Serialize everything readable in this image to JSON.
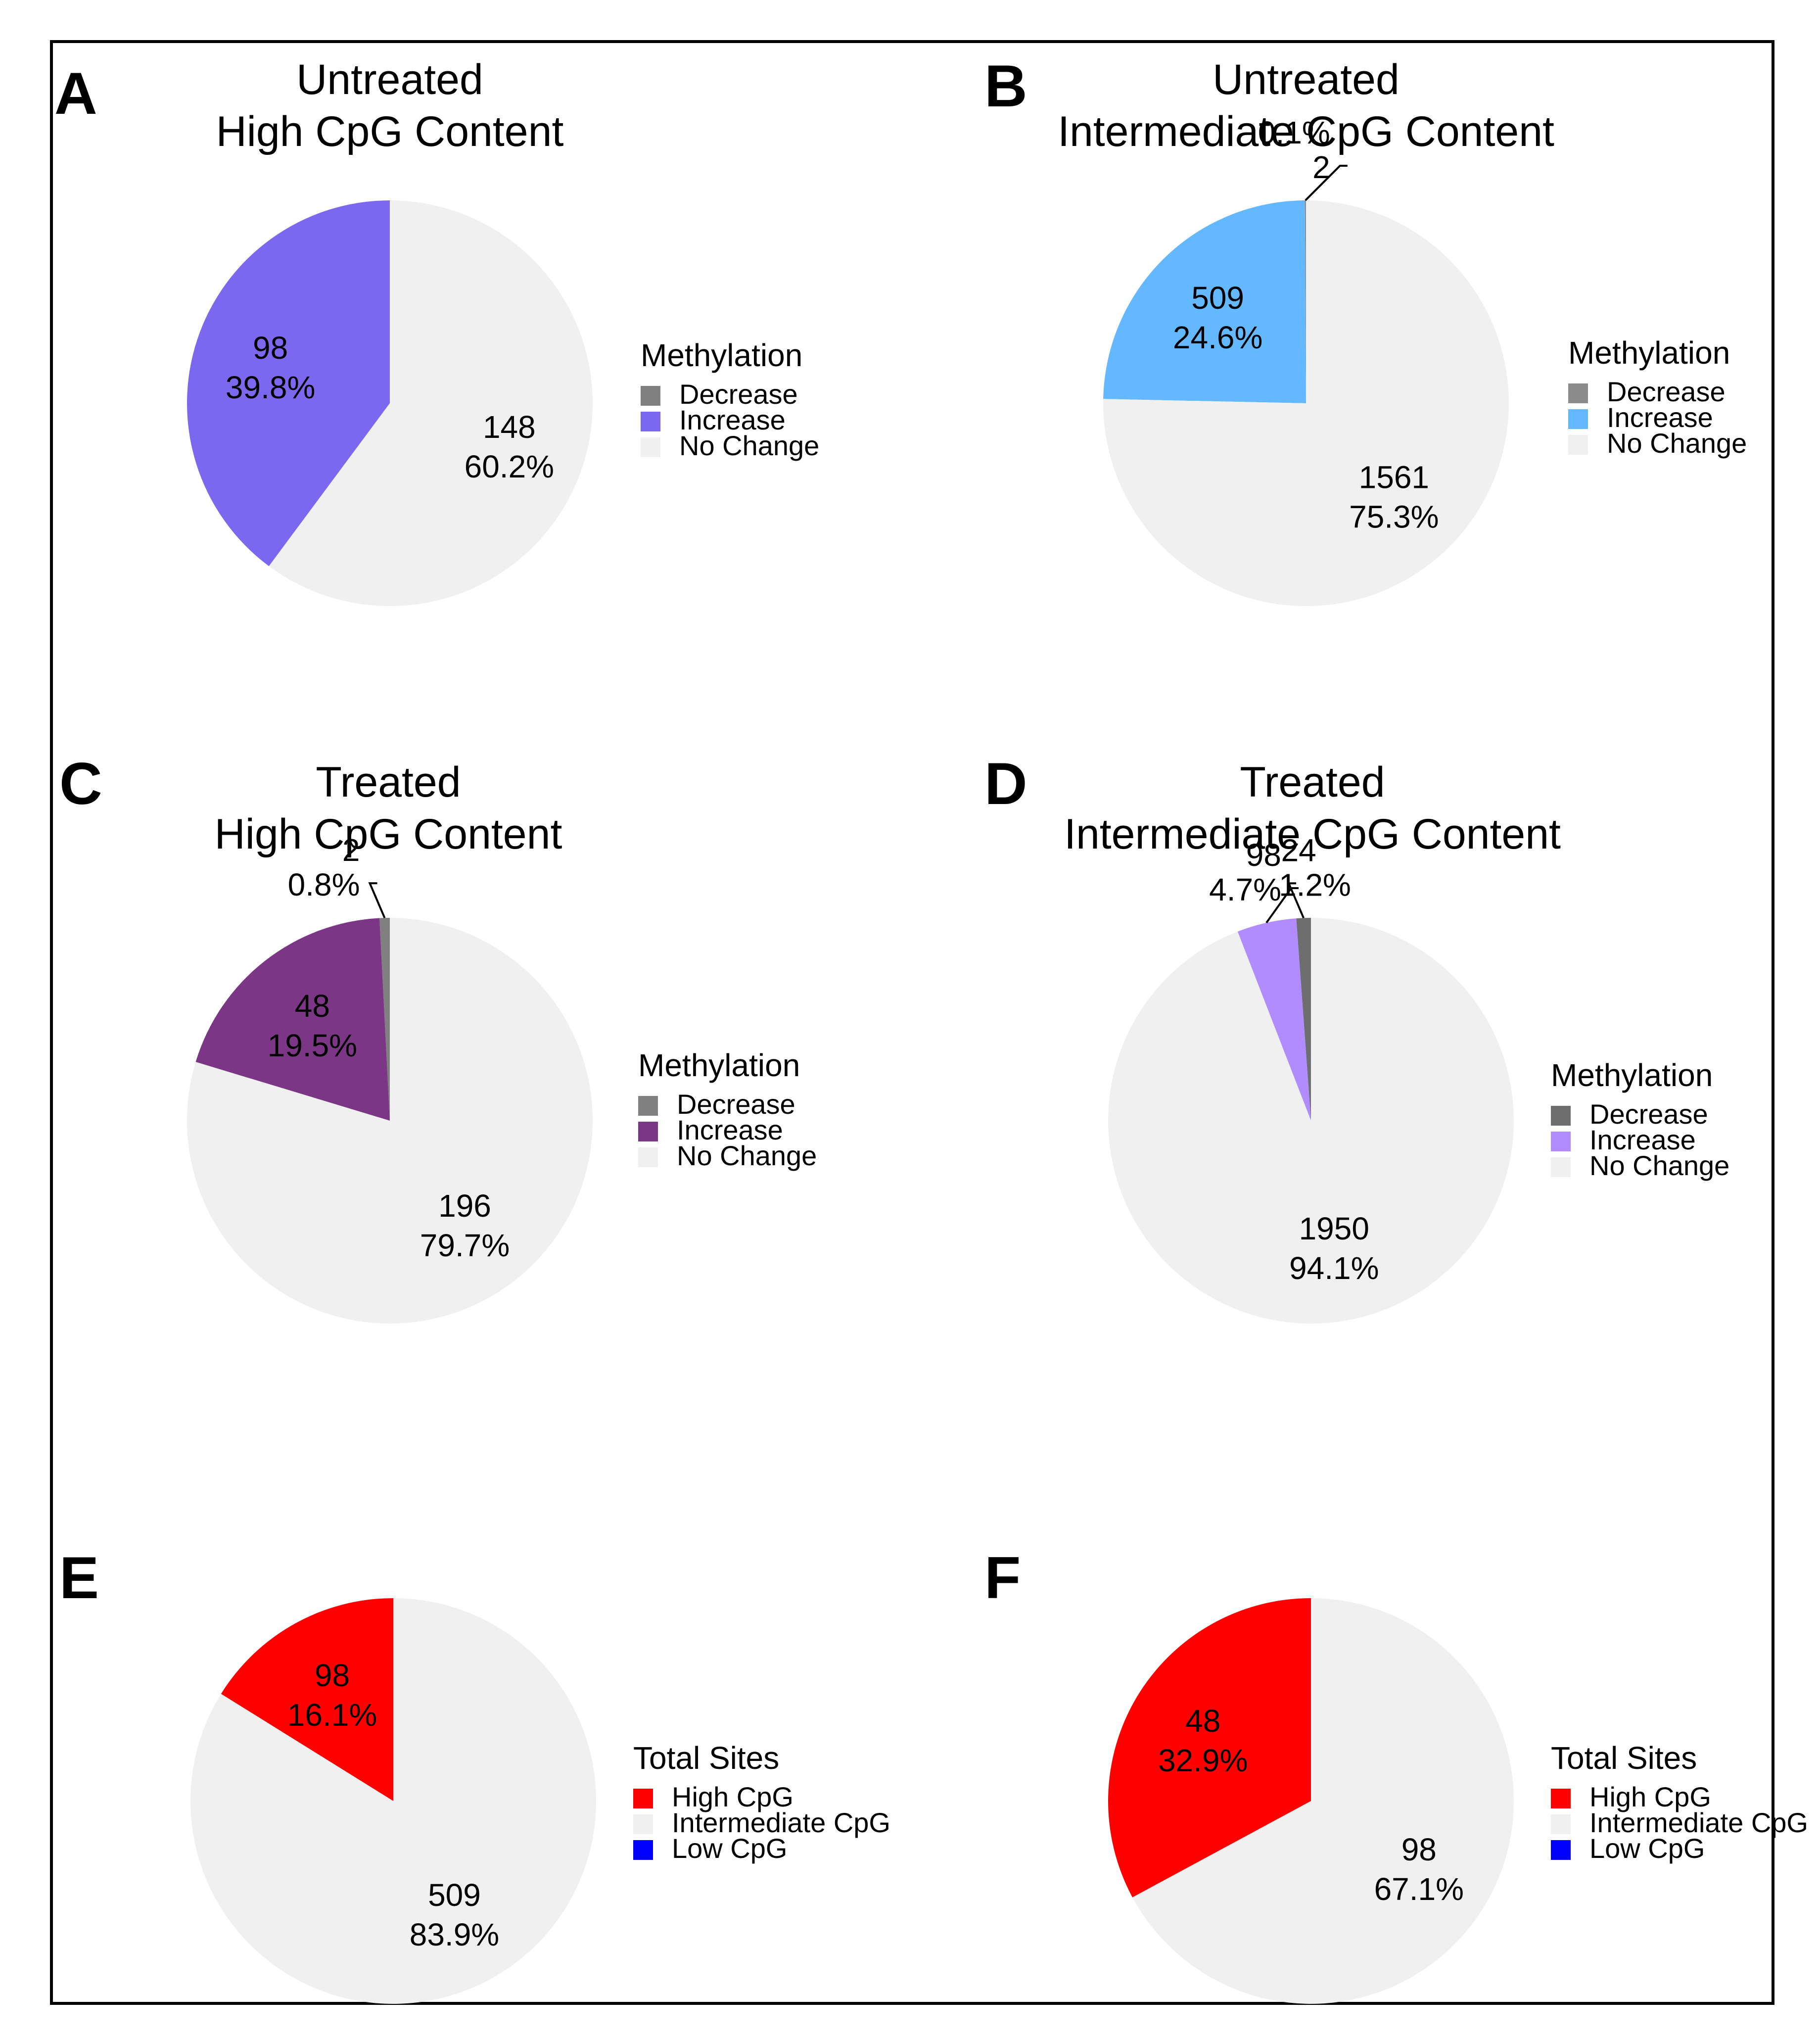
{
  "figure": {
    "background": "#ffffff",
    "frame_color": "#000000"
  },
  "chart_data": [
    {
      "panel": "A",
      "type": "pie",
      "title": [
        "Untreated",
        "High CpG Content"
      ],
      "legend_title": "Methylation",
      "slices": [
        {
          "name": "Decrease",
          "value": 0,
          "percent": "",
          "color": "#808080",
          "label": [
            "",
            ""
          ]
        },
        {
          "name": "Increase",
          "value": 98,
          "percent": "39.8%",
          "color": "#7B68EE",
          "label": [
            "98",
            "39.8%"
          ]
        },
        {
          "name": "No Change",
          "value": 148,
          "percent": "60.2%",
          "color": "#F0F0F0",
          "label": [
            "148",
            "60.2%"
          ]
        }
      ]
    },
    {
      "panel": "B",
      "type": "pie",
      "title": [
        "Untreated",
        "Intermediate CpG Content"
      ],
      "legend_title": "Methylation",
      "slices": [
        {
          "name": "Decrease",
          "value": 2,
          "percent": "0.1%",
          "color": "#8C8C8C",
          "label": [
            "0.1%",
            "2"
          ]
        },
        {
          "name": "Increase",
          "value": 509,
          "percent": "24.6%",
          "color": "#63B8FF",
          "label": [
            "509",
            "24.6%"
          ]
        },
        {
          "name": "No Change",
          "value": 1561,
          "percent": "75.3%",
          "color": "#F0F0F0",
          "label": [
            "1561",
            "75.3%"
          ]
        }
      ]
    },
    {
      "panel": "C",
      "type": "pie",
      "title": [
        "Treated",
        "High CpG Content"
      ],
      "legend_title": "Methylation",
      "slices": [
        {
          "name": "Decrease",
          "value": 2,
          "percent": "0.8%",
          "color": "#808080",
          "label": [
            "2",
            "0.8%"
          ]
        },
        {
          "name": "Increase",
          "value": 48,
          "percent": "19.5%",
          "color": "#7B3785",
          "label": [
            "48",
            "19.5%"
          ]
        },
        {
          "name": "No Change",
          "value": 196,
          "percent": "79.7%",
          "color": "#F0F0F0",
          "label": [
            "196",
            "79.7%"
          ]
        }
      ]
    },
    {
      "panel": "D",
      "type": "pie",
      "title": [
        "Treated",
        "Intermediate CpG Content"
      ],
      "legend_title": "Methylation",
      "slices": [
        {
          "name": "Decrease",
          "value": 24,
          "percent": "1.2%",
          "color": "#6E6E6E",
          "label": [
            "24",
            "1.2%"
          ]
        },
        {
          "name": "Increase",
          "value": 98,
          "percent": "4.7%",
          "color": "#B08CFF",
          "label": [
            "98",
            "4.7%"
          ]
        },
        {
          "name": "No Change",
          "value": 1950,
          "percent": "94.1%",
          "color": "#F0F0F0",
          "label": [
            "1950",
            "94.1%"
          ]
        }
      ]
    },
    {
      "panel": "E",
      "type": "pie",
      "title": [],
      "legend_title": "Total Sites",
      "slices": [
        {
          "name": "High CpG",
          "value": 98,
          "percent": "16.1%",
          "color": "#FF0000",
          "label": [
            "98",
            "16.1%"
          ]
        },
        {
          "name": "Intermediate CpG",
          "value": 509,
          "percent": "83.9%",
          "color": "#F0F0F0",
          "label": [
            "509",
            "83.9%"
          ]
        },
        {
          "name": "Low CpG",
          "value": 0,
          "percent": "",
          "color": "#0000FF",
          "label": [
            "",
            ""
          ]
        }
      ]
    },
    {
      "panel": "F",
      "type": "pie",
      "title": [],
      "legend_title": "Total Sites",
      "slices": [
        {
          "name": "High CpG",
          "value": 48,
          "percent": "32.9%",
          "color": "#FF0000",
          "label": [
            "48",
            "32.9%"
          ]
        },
        {
          "name": "Intermediate CpG",
          "value": 98,
          "percent": "67.1%",
          "color": "#F0F0F0",
          "label": [
            "98",
            "67.1%"
          ]
        },
        {
          "name": "Low CpG",
          "value": 0,
          "percent": "",
          "color": "#0000FF",
          "label": [
            "",
            ""
          ]
        }
      ]
    }
  ]
}
